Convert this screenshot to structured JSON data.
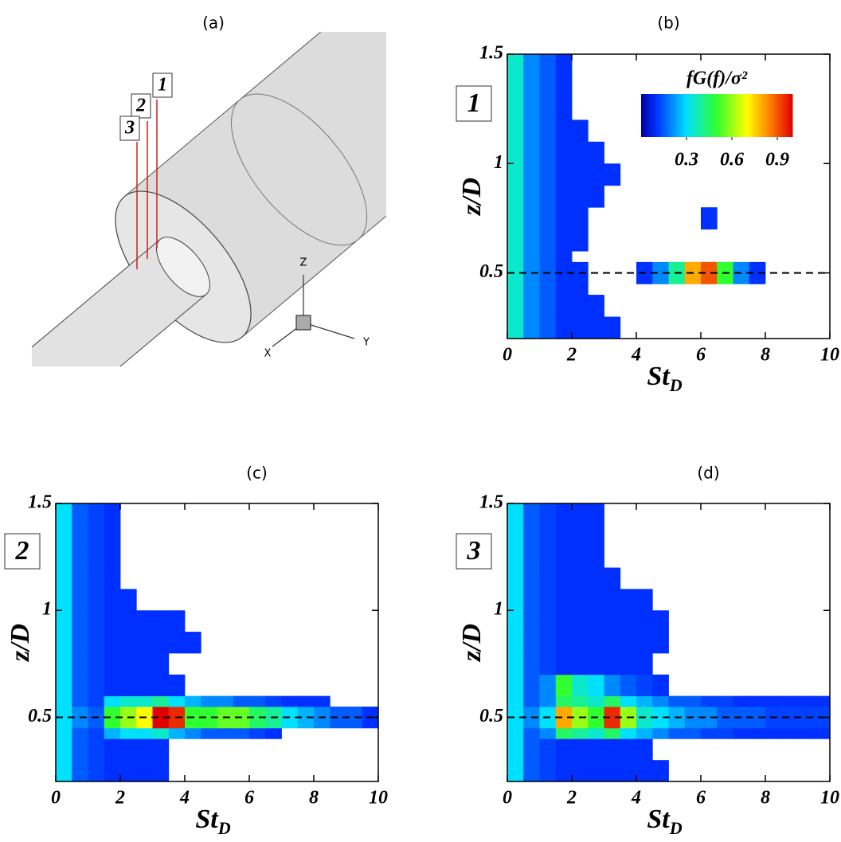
{
  "diagram": {
    "label": "(a)",
    "probes": [
      "1",
      "2",
      "3"
    ],
    "axes": {
      "z": "Z",
      "y": "Y",
      "x": "X"
    }
  },
  "chart_data": [
    {
      "type": "heatmap",
      "title": "(b)",
      "probe": "1",
      "xlabel": "St",
      "xlabel_subscript": "D",
      "ylabel": "z/D",
      "xlim": [
        0,
        10
      ],
      "ylim": [
        0.2,
        1.5
      ],
      "xticks": [
        0,
        2,
        4,
        6,
        8,
        10
      ],
      "yticks": [
        0.5,
        1,
        1.5
      ],
      "hline": 0.5,
      "x_bins": [
        0,
        0.5,
        1,
        1.5,
        2,
        2.5,
        3,
        3.5,
        4,
        4.5,
        5,
        5.5,
        6,
        6.5,
        7,
        7.5,
        8,
        8.5,
        9,
        9.5,
        10
      ],
      "y_bins": [
        0.2,
        0.3,
        0.4,
        0.45,
        0.55,
        0.6,
        0.7,
        0.8,
        0.9,
        1.0,
        1.1,
        1.2,
        1.3,
        1.4,
        1.5
      ],
      "colorbar": {
        "label": "fG(f)/σ²",
        "lim": [
          0,
          1
        ],
        "ticks": [
          0.3,
          0.6,
          0.9
        ]
      },
      "values": [
        [
          0.35,
          0.2,
          0.15,
          0.1,
          0.1,
          0.1,
          0.1,
          null,
          null,
          null,
          null,
          null,
          null,
          null,
          null,
          null,
          null,
          null,
          null,
          null
        ],
        [
          0.35,
          0.2,
          0.15,
          0.1,
          0.1,
          0.1,
          null,
          null,
          null,
          null,
          null,
          null,
          null,
          null,
          null,
          null,
          null,
          null,
          null,
          null
        ],
        [
          0.35,
          0.2,
          0.15,
          0.1,
          0.1,
          null,
          null,
          null,
          null,
          null,
          null,
          null,
          null,
          null,
          null,
          null,
          null,
          null,
          null,
          null
        ],
        [
          0.35,
          0.2,
          0.15,
          0.1,
          0.1,
          null,
          null,
          null,
          0.1,
          0.2,
          0.4,
          0.8,
          0.9,
          0.5,
          0.2,
          0.1,
          null,
          null,
          null,
          null
        ],
        [
          0.35,
          0.2,
          0.15,
          0.1,
          null,
          null,
          null,
          null,
          null,
          null,
          null,
          null,
          null,
          null,
          null,
          null,
          null,
          null,
          null,
          null
        ],
        [
          0.35,
          0.2,
          0.15,
          0.1,
          0.1,
          null,
          null,
          null,
          null,
          null,
          null,
          null,
          null,
          null,
          null,
          null,
          null,
          null,
          null,
          null
        ],
        [
          0.35,
          0.2,
          0.15,
          0.1,
          0.1,
          null,
          null,
          null,
          null,
          null,
          null,
          null,
          0.1,
          null,
          null,
          null,
          null,
          null,
          null,
          null
        ],
        [
          0.35,
          0.2,
          0.15,
          0.1,
          0.1,
          0.1,
          null,
          null,
          null,
          null,
          null,
          null,
          null,
          null,
          null,
          null,
          null,
          null,
          null,
          null
        ],
        [
          0.35,
          0.2,
          0.15,
          0.1,
          0.1,
          0.1,
          0.1,
          null,
          null,
          null,
          null,
          null,
          null,
          null,
          null,
          null,
          null,
          null,
          null,
          null
        ],
        [
          0.35,
          0.2,
          0.15,
          0.1,
          0.1,
          0.1,
          null,
          null,
          null,
          null,
          null,
          null,
          null,
          null,
          null,
          null,
          null,
          null,
          null,
          null
        ],
        [
          0.35,
          0.2,
          0.15,
          0.1,
          0.1,
          null,
          null,
          null,
          null,
          null,
          null,
          null,
          null,
          null,
          null,
          null,
          null,
          null,
          null,
          null
        ],
        [
          0.35,
          0.2,
          0.15,
          0.1,
          null,
          null,
          null,
          null,
          null,
          null,
          null,
          null,
          null,
          null,
          null,
          null,
          null,
          null,
          null,
          null
        ],
        [
          0.35,
          0.2,
          0.15,
          0.1,
          null,
          null,
          null,
          null,
          null,
          null,
          null,
          null,
          null,
          null,
          null,
          null,
          null,
          null,
          null,
          null
        ],
        [
          0.35,
          0.2,
          0.15,
          0.1,
          null,
          null,
          null,
          null,
          null,
          null,
          null,
          null,
          null,
          null,
          null,
          null,
          null,
          null,
          null,
          null
        ]
      ]
    },
    {
      "type": "heatmap",
      "title": "(c)",
      "probe": "2",
      "xlabel": "St",
      "xlabel_subscript": "D",
      "ylabel": "z/D",
      "xlim": [
        0,
        10
      ],
      "ylim": [
        0.2,
        1.5
      ],
      "xticks": [
        0,
        2,
        4,
        6,
        8,
        10
      ],
      "yticks": [
        0.5,
        1,
        1.5
      ],
      "hline": 0.5,
      "x_bins": [
        0,
        0.5,
        1,
        1.5,
        2,
        2.5,
        3,
        3.5,
        4,
        4.5,
        5,
        5.5,
        6,
        6.5,
        7,
        7.5,
        8,
        8.5,
        9,
        9.5,
        10
      ],
      "y_bins": [
        0.2,
        0.3,
        0.4,
        0.45,
        0.55,
        0.6,
        0.7,
        0.8,
        0.9,
        1.0,
        1.1,
        1.2,
        1.3,
        1.4,
        1.5
      ],
      "values": [
        [
          0.3,
          0.15,
          0.12,
          0.1,
          0.1,
          0.1,
          0.1,
          null,
          null,
          null,
          null,
          null,
          null,
          null,
          null,
          null,
          null,
          null,
          null,
          null
        ],
        [
          0.3,
          0.15,
          0.12,
          0.1,
          0.1,
          0.1,
          0.1,
          null,
          null,
          null,
          null,
          null,
          null,
          null,
          null,
          null,
          null,
          null,
          null,
          null
        ],
        [
          0.3,
          0.15,
          0.12,
          0.25,
          0.3,
          0.3,
          0.35,
          0.25,
          0.2,
          0.15,
          0.15,
          0.15,
          0.12,
          0.1,
          null,
          null,
          null,
          null,
          null,
          null
        ],
        [
          0.3,
          0.2,
          0.15,
          0.5,
          0.6,
          0.7,
          1.0,
          0.95,
          0.5,
          0.5,
          0.55,
          0.55,
          0.45,
          0.4,
          0.3,
          0.25,
          0.2,
          0.15,
          0.15,
          0.1
        ],
        [
          0.3,
          0.15,
          0.12,
          0.3,
          0.35,
          0.35,
          0.4,
          0.3,
          0.25,
          0.2,
          0.2,
          0.15,
          0.15,
          0.12,
          0.1,
          0.1,
          0.1,
          null,
          null,
          null
        ],
        [
          0.3,
          0.15,
          0.12,
          0.1,
          0.1,
          0.1,
          0.1,
          0.1,
          null,
          null,
          null,
          null,
          null,
          null,
          null,
          null,
          null,
          null,
          null,
          null
        ],
        [
          0.3,
          0.15,
          0.12,
          0.1,
          0.1,
          0.1,
          0.1,
          null,
          null,
          null,
          null,
          null,
          null,
          null,
          null,
          null,
          null,
          null,
          null,
          null
        ],
        [
          0.3,
          0.15,
          0.12,
          0.1,
          0.1,
          0.1,
          0.1,
          0.1,
          0.1,
          null,
          null,
          null,
          null,
          null,
          null,
          null,
          null,
          null,
          null,
          null
        ],
        [
          0.3,
          0.15,
          0.12,
          0.1,
          0.1,
          0.1,
          0.1,
          0.1,
          null,
          null,
          null,
          null,
          null,
          null,
          null,
          null,
          null,
          null,
          null,
          null
        ],
        [
          0.3,
          0.15,
          0.12,
          0.1,
          0.1,
          null,
          null,
          null,
          null,
          null,
          null,
          null,
          null,
          null,
          null,
          null,
          null,
          null,
          null,
          null
        ],
        [
          0.3,
          0.15,
          0.12,
          0.1,
          null,
          null,
          null,
          null,
          null,
          null,
          null,
          null,
          null,
          null,
          null,
          null,
          null,
          null,
          null,
          null
        ],
        [
          0.3,
          0.15,
          0.12,
          0.1,
          null,
          null,
          null,
          null,
          null,
          null,
          null,
          null,
          null,
          null,
          null,
          null,
          null,
          null,
          null,
          null
        ],
        [
          0.3,
          0.15,
          0.12,
          0.1,
          null,
          null,
          null,
          null,
          null,
          null,
          null,
          null,
          null,
          null,
          null,
          null,
          null,
          null,
          null,
          null
        ],
        [
          0.3,
          0.15,
          0.12,
          0.1,
          null,
          null,
          null,
          null,
          null,
          null,
          null,
          null,
          null,
          null,
          null,
          null,
          null,
          null,
          null,
          null
        ]
      ]
    },
    {
      "type": "heatmap",
      "title": "(d)",
      "probe": "3",
      "xlabel": "St",
      "xlabel_subscript": "D",
      "ylabel": "z/D",
      "xlim": [
        0,
        10
      ],
      "ylim": [
        0.2,
        1.5
      ],
      "xticks": [
        0,
        2,
        4,
        6,
        8,
        10
      ],
      "yticks": [
        0.5,
        1,
        1.5
      ],
      "hline": 0.5,
      "x_bins": [
        0,
        0.5,
        1,
        1.5,
        2,
        2.5,
        3,
        3.5,
        4,
        4.5,
        5,
        5.5,
        6,
        6.5,
        7,
        7.5,
        8,
        8.5,
        9,
        9.5,
        10
      ],
      "y_bins": [
        0.2,
        0.3,
        0.4,
        0.45,
        0.55,
        0.6,
        0.7,
        0.8,
        0.9,
        1.0,
        1.1,
        1.2,
        1.3,
        1.4,
        1.5
      ],
      "values": [
        [
          0.3,
          0.15,
          0.12,
          0.1,
          0.1,
          0.1,
          0.1,
          0.1,
          0.1,
          0.1,
          null,
          null,
          null,
          null,
          null,
          null,
          null,
          null,
          null,
          null
        ],
        [
          0.3,
          0.15,
          0.12,
          0.1,
          0.1,
          0.1,
          0.1,
          0.1,
          0.1,
          null,
          null,
          null,
          null,
          null,
          null,
          null,
          null,
          null,
          null,
          null
        ],
        [
          0.3,
          0.15,
          0.2,
          0.45,
          0.4,
          0.35,
          0.45,
          0.3,
          0.25,
          0.2,
          0.15,
          0.15,
          0.12,
          0.12,
          0.1,
          0.1,
          0.1,
          0.1,
          0.1,
          0.1
        ],
        [
          0.3,
          0.2,
          0.3,
          0.8,
          0.6,
          0.5,
          0.95,
          0.6,
          0.35,
          0.3,
          0.25,
          0.2,
          0.2,
          0.15,
          0.15,
          0.15,
          0.12,
          0.12,
          0.12,
          0.12
        ],
        [
          0.3,
          0.15,
          0.2,
          0.45,
          0.4,
          0.35,
          0.45,
          0.3,
          0.25,
          0.2,
          0.15,
          0.15,
          0.12,
          0.12,
          0.1,
          0.1,
          0.1,
          0.1,
          0.1,
          0.1
        ],
        [
          0.3,
          0.15,
          0.2,
          0.5,
          0.35,
          0.3,
          0.2,
          0.15,
          0.12,
          0.1,
          null,
          null,
          null,
          null,
          null,
          null,
          null,
          null,
          null,
          null
        ],
        [
          0.3,
          0.15,
          0.12,
          0.1,
          0.1,
          0.1,
          0.1,
          0.1,
          0.1,
          null,
          null,
          null,
          null,
          null,
          null,
          null,
          null,
          null,
          null,
          null
        ],
        [
          0.3,
          0.15,
          0.12,
          0.1,
          0.1,
          0.1,
          0.1,
          0.1,
          0.1,
          0.1,
          null,
          null,
          null,
          null,
          null,
          null,
          null,
          null,
          null,
          null
        ],
        [
          0.3,
          0.15,
          0.12,
          0.1,
          0.1,
          0.1,
          0.1,
          0.1,
          0.1,
          0.1,
          null,
          null,
          null,
          null,
          null,
          null,
          null,
          null,
          null,
          null
        ],
        [
          0.3,
          0.15,
          0.12,
          0.1,
          0.1,
          0.1,
          0.1,
          0.1,
          0.1,
          null,
          null,
          null,
          null,
          null,
          null,
          null,
          null,
          null,
          null,
          null
        ],
        [
          0.3,
          0.15,
          0.12,
          0.1,
          0.1,
          0.1,
          0.1,
          null,
          null,
          null,
          null,
          null,
          null,
          null,
          null,
          null,
          null,
          null,
          null,
          null
        ],
        [
          0.3,
          0.15,
          0.12,
          0.1,
          0.1,
          0.1,
          null,
          null,
          null,
          null,
          null,
          null,
          null,
          null,
          null,
          null,
          null,
          null,
          null,
          null
        ],
        [
          0.3,
          0.15,
          0.12,
          0.1,
          0.1,
          0.1,
          null,
          null,
          null,
          null,
          null,
          null,
          null,
          null,
          null,
          null,
          null,
          null,
          null,
          null
        ],
        [
          0.3,
          0.15,
          0.12,
          0.1,
          0.1,
          0.1,
          null,
          null,
          null,
          null,
          null,
          null,
          null,
          null,
          null,
          null,
          null,
          null,
          null,
          null
        ]
      ]
    }
  ]
}
